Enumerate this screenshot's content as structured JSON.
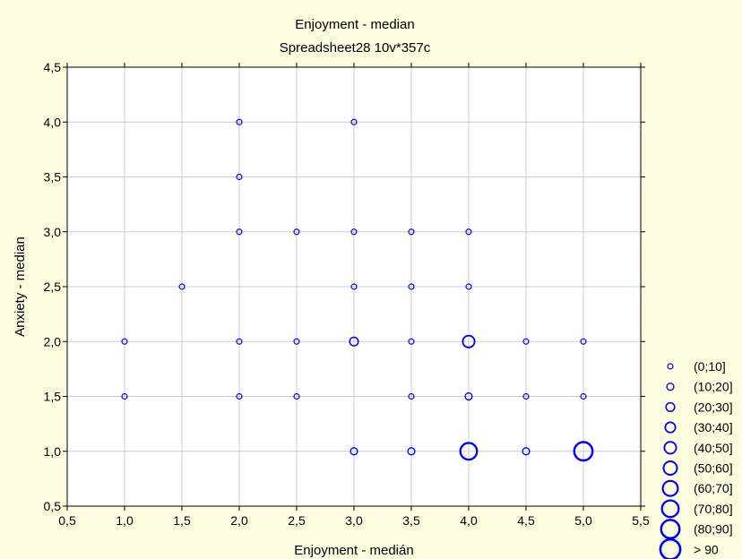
{
  "chart_data": {
    "type": "scatter",
    "title": "Enjoyment - median",
    "subtitle": "Spreadsheet28 10v*357c",
    "xlabel": "Enjoyment - medián",
    "ylabel": "Anxiety - median",
    "xlim": [
      0.5,
      5.5
    ],
    "ylim": [
      0.5,
      4.5
    ],
    "x_ticks": [
      "0,5",
      "1,0",
      "1,5",
      "2,0",
      "2,5",
      "3,0",
      "3,5",
      "4,0",
      "4,5",
      "5,0",
      "5,5"
    ],
    "y_ticks": [
      "0,5",
      "1,0",
      "1,5",
      "2,0",
      "2,5",
      "3,0",
      "3,5",
      "4,0",
      "4,5"
    ],
    "grid": true,
    "marker": "circle",
    "color": "#0000ff",
    "legend_position": "bottom-right",
    "legend": [
      {
        "label": "(0;10]",
        "level": 1
      },
      {
        "label": "(10;20]",
        "level": 2
      },
      {
        "label": "(20;30]",
        "level": 3
      },
      {
        "label": "(30;40]",
        "level": 4
      },
      {
        "label": "(40;50]",
        "level": 5
      },
      {
        "label": "(50;60]",
        "level": 6
      },
      {
        "label": "(60;70]",
        "level": 7
      },
      {
        "label": "(70;80]",
        "level": 8
      },
      {
        "label": "(80;90]",
        "level": 9
      },
      {
        "label": "> 90",
        "level": 10
      }
    ],
    "points": [
      {
        "x": 2.0,
        "y": 4.0,
        "level": 1
      },
      {
        "x": 3.0,
        "y": 4.0,
        "level": 1
      },
      {
        "x": 2.0,
        "y": 3.5,
        "level": 1
      },
      {
        "x": 2.0,
        "y": 3.0,
        "level": 1
      },
      {
        "x": 2.5,
        "y": 3.0,
        "level": 1
      },
      {
        "x": 3.0,
        "y": 3.0,
        "level": 1
      },
      {
        "x": 3.5,
        "y": 3.0,
        "level": 1
      },
      {
        "x": 4.0,
        "y": 3.0,
        "level": 1
      },
      {
        "x": 1.5,
        "y": 2.5,
        "level": 1
      },
      {
        "x": 3.0,
        "y": 2.5,
        "level": 1
      },
      {
        "x": 3.5,
        "y": 2.5,
        "level": 1
      },
      {
        "x": 4.0,
        "y": 2.5,
        "level": 1
      },
      {
        "x": 1.0,
        "y": 2.0,
        "level": 1
      },
      {
        "x": 2.0,
        "y": 2.0,
        "level": 1
      },
      {
        "x": 2.5,
        "y": 2.0,
        "level": 1
      },
      {
        "x": 3.0,
        "y": 2.0,
        "level": 3
      },
      {
        "x": 3.5,
        "y": 2.0,
        "level": 1
      },
      {
        "x": 4.0,
        "y": 2.0,
        "level": 5
      },
      {
        "x": 4.5,
        "y": 2.0,
        "level": 1
      },
      {
        "x": 5.0,
        "y": 2.0,
        "level": 1
      },
      {
        "x": 1.0,
        "y": 1.5,
        "level": 1
      },
      {
        "x": 2.0,
        "y": 1.5,
        "level": 1
      },
      {
        "x": 2.5,
        "y": 1.5,
        "level": 1
      },
      {
        "x": 3.5,
        "y": 1.5,
        "level": 1
      },
      {
        "x": 4.0,
        "y": 1.5,
        "level": 2
      },
      {
        "x": 4.5,
        "y": 1.5,
        "level": 1
      },
      {
        "x": 5.0,
        "y": 1.5,
        "level": 1
      },
      {
        "x": 3.0,
        "y": 1.0,
        "level": 2
      },
      {
        "x": 3.5,
        "y": 1.0,
        "level": 2
      },
      {
        "x": 4.0,
        "y": 1.0,
        "level": 8
      },
      {
        "x": 4.5,
        "y": 1.0,
        "level": 2
      },
      {
        "x": 5.0,
        "y": 1.0,
        "level": 9
      }
    ]
  }
}
